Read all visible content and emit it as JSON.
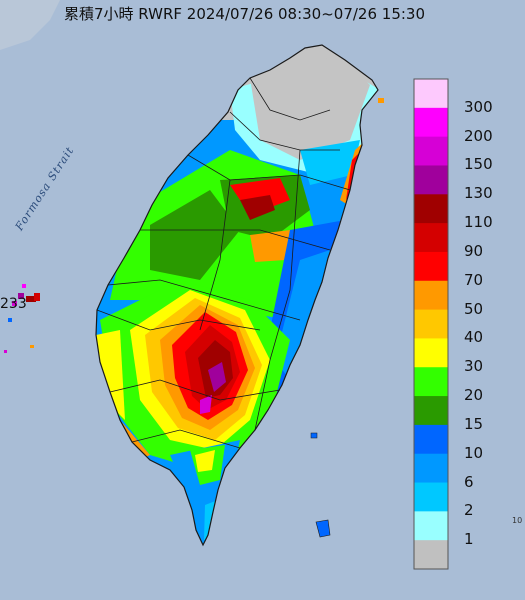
{
  "title": "累積7小時 RWRF 2024/07/26 08:30~07/26 15:30",
  "strait_label": "Formosa Strait",
  "islet_value": "233",
  "corner_label": "10",
  "legend": {
    "values": [
      "300",
      "200",
      "150",
      "130",
      "110",
      "90",
      "70",
      "50",
      "40",
      "30",
      "20",
      "15",
      "10",
      "6",
      "2",
      "1"
    ],
    "colors": [
      "#fdc9fd",
      "#fe00fe",
      "#d600d6",
      "#a0009c",
      "#a00000",
      "#d40000",
      "#ff0000",
      "#ff9900",
      "#ffc800",
      "#ffff00",
      "#33ff00",
      "#2a9a00",
      "#0066ff",
      "#0098ff",
      "#00c8ff",
      "#99ffff",
      "#c0c0c0"
    ]
  },
  "map_colors": {
    "sea": "#a9bdd6",
    "no_rain": "#c4c4c4",
    "outline": "#1a1a1a"
  }
}
